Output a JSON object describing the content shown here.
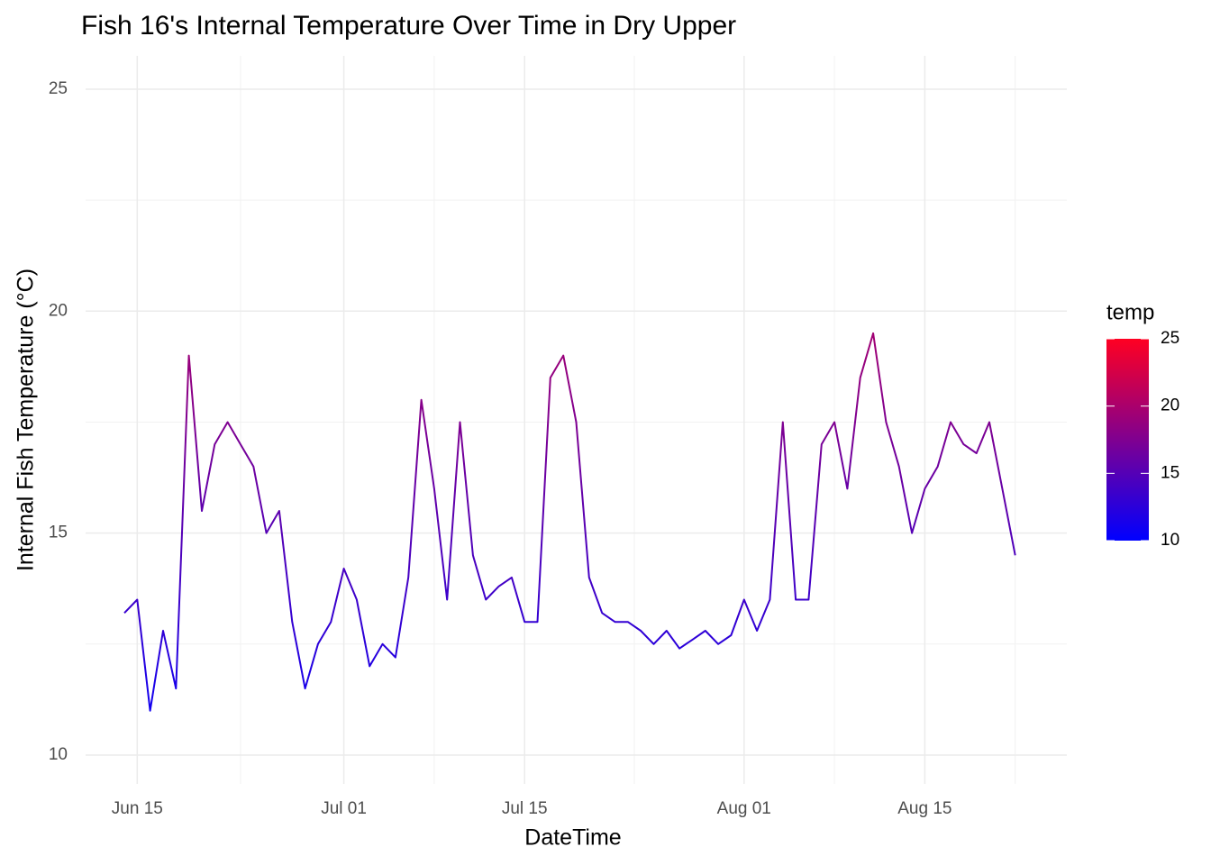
{
  "chart_data": {
    "type": "line",
    "title": "Fish 16's Internal Temperature Over Time in Dry Upper",
    "x_label": "DateTime",
    "y_label": "Internal Fish Temperature (°C)",
    "x": [
      "Jun 14",
      "Jun 15",
      "Jun 16",
      "Jun 17",
      "Jun 18",
      "Jun 19",
      "Jun 20",
      "Jun 21",
      "Jun 22",
      "Jun 23",
      "Jun 24",
      "Jun 25",
      "Jun 26",
      "Jun 27",
      "Jun 28",
      "Jun 29",
      "Jun 30",
      "Jul 01",
      "Jul 02",
      "Jul 03",
      "Jul 04",
      "Jul 05",
      "Jul 06",
      "Jul 07",
      "Jul 08",
      "Jul 09",
      "Jul 10",
      "Jul 11",
      "Jul 12",
      "Jul 13",
      "Jul 14",
      "Jul 15",
      "Jul 16",
      "Jul 17",
      "Jul 18",
      "Jul 19",
      "Jul 20",
      "Jul 21",
      "Jul 22",
      "Jul 23",
      "Jul 24",
      "Jul 25",
      "Jul 26",
      "Jul 27",
      "Jul 28",
      "Jul 29",
      "Jul 30",
      "Jul 31",
      "Aug 01",
      "Aug 02",
      "Aug 03",
      "Aug 04",
      "Aug 05",
      "Aug 06",
      "Aug 07",
      "Aug 08",
      "Aug 09",
      "Aug 10",
      "Aug 11",
      "Aug 12",
      "Aug 13",
      "Aug 14",
      "Aug 15",
      "Aug 16",
      "Aug 17",
      "Aug 18",
      "Aug 19",
      "Aug 20",
      "Aug 21",
      "Aug 22"
    ],
    "series": [
      {
        "name": "temp",
        "values": [
          13.2,
          13.5,
          11.0,
          12.8,
          11.5,
          19.0,
          15.5,
          17.0,
          17.5,
          17.0,
          16.5,
          15.0,
          15.5,
          13.0,
          11.5,
          12.5,
          13.0,
          14.2,
          13.5,
          12.0,
          12.5,
          12.2,
          14.0,
          18.0,
          16.0,
          13.5,
          17.5,
          14.5,
          13.5,
          13.8,
          14.0,
          13.0,
          13.0,
          18.5,
          19.0,
          17.5,
          14.0,
          13.2,
          13.0,
          13.0,
          12.8,
          12.5,
          12.8,
          12.4,
          12.6,
          12.8,
          12.5,
          12.7,
          13.5,
          12.8,
          13.5,
          17.5,
          13.5,
          13.5,
          17.0,
          17.5,
          16.0,
          18.5,
          19.5,
          17.5,
          16.5,
          15.0,
          16.0,
          16.5,
          17.5,
          17.0,
          16.8,
          17.5,
          16.0,
          14.5
        ]
      }
    ],
    "xlim": [
      "Jun 11",
      "Aug 26"
    ],
    "xticks": [
      "Jun 15",
      "Jul 01",
      "Jul 15",
      "Aug 01",
      "Aug 15"
    ],
    "ylim": [
      9.35,
      25.75
    ],
    "yticks": [
      10,
      15,
      20,
      25
    ],
    "grid": true,
    "color_scale": {
      "name": "temp",
      "low": "#0000ff",
      "high": "#ff0022",
      "limits": [
        10,
        25
      ],
      "ticks": [
        10,
        15,
        20,
        25
      ]
    }
  }
}
